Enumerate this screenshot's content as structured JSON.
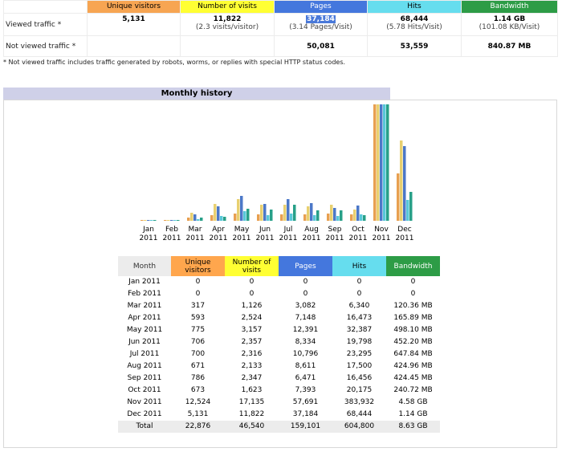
{
  "summary": {
    "headers": {
      "unique_visitors": "Unique visitors",
      "number_of_visits": "Number of visits",
      "pages": "Pages",
      "hits": "Hits",
      "bandwidth": "Bandwidth"
    },
    "viewed": {
      "label": "Viewed traffic *",
      "unique_visitors": "5,131",
      "visits": "11,822",
      "visits_sub": "(2.3 visits/visitor)",
      "pages": "37,184",
      "pages_sub": "(3.14 Pages/Visit)",
      "hits": "68,444",
      "hits_sub": "(5.78 Hits/Visit)",
      "bandwidth": "1.14 GB",
      "bandwidth_sub": "(101.08 KB/Visit)"
    },
    "not_viewed": {
      "label": "Not viewed traffic *",
      "pages": "50,081",
      "hits": "53,559",
      "bandwidth": "840.87 MB"
    },
    "note": "* Not viewed traffic includes traffic generated by robots, worms, or replies with special HTTP status codes."
  },
  "monthly_history": {
    "title": "Monthly history",
    "headers": {
      "month": "Month",
      "unique_visitors": "Unique visitors",
      "number_of_visits": "Number of visits",
      "pages": "Pages",
      "hits": "Hits",
      "bandwidth": "Bandwidth"
    },
    "rows": [
      {
        "month": "Jan 2011",
        "uv": "0",
        "visits": "0",
        "pages": "0",
        "hits": "0",
        "bw": "0"
      },
      {
        "month": "Feb 2011",
        "uv": "0",
        "visits": "0",
        "pages": "0",
        "hits": "0",
        "bw": "0"
      },
      {
        "month": "Mar 2011",
        "uv": "317",
        "visits": "1,126",
        "pages": "3,082",
        "hits": "6,340",
        "bw": "120.36 MB"
      },
      {
        "month": "Apr 2011",
        "uv": "593",
        "visits": "2,524",
        "pages": "7,148",
        "hits": "16,473",
        "bw": "165.89 MB"
      },
      {
        "month": "May 2011",
        "uv": "775",
        "visits": "3,157",
        "pages": "12,391",
        "hits": "32,387",
        "bw": "498.10 MB"
      },
      {
        "month": "Jun 2011",
        "uv": "706",
        "visits": "2,357",
        "pages": "8,334",
        "hits": "19,798",
        "bw": "452.20 MB"
      },
      {
        "month": "Jul 2011",
        "uv": "700",
        "visits": "2,316",
        "pages": "10,796",
        "hits": "23,295",
        "bw": "647.84 MB"
      },
      {
        "month": "Aug 2011",
        "uv": "671",
        "visits": "2,133",
        "pages": "8,611",
        "hits": "17,500",
        "bw": "424.96 MB"
      },
      {
        "month": "Sep 2011",
        "uv": "786",
        "visits": "2,347",
        "pages": "6,471",
        "hits": "16,456",
        "bw": "424.45 MB"
      },
      {
        "month": "Oct 2011",
        "uv": "673",
        "visits": "1,623",
        "pages": "7,393",
        "hits": "20,175",
        "bw": "240.72 MB"
      },
      {
        "month": "Nov 2011",
        "uv": "12,524",
        "visits": "17,135",
        "pages": "57,691",
        "hits": "383,932",
        "bw": "4.58 GB"
      },
      {
        "month": "Dec 2011",
        "uv": "5,131",
        "visits": "11,822",
        "pages": "37,184",
        "hits": "68,444",
        "bw": "1.14 GB"
      }
    ],
    "total": {
      "month": "Total",
      "uv": "22,876",
      "visits": "46,540",
      "pages": "159,101",
      "hits": "604,800",
      "bw": "8.63 GB"
    }
  },
  "chart_data": {
    "type": "bar",
    "categories": [
      "Jan 2011",
      "Feb 2011",
      "Mar 2011",
      "Apr 2011",
      "May 2011",
      "Jun 2011",
      "Jul 2011",
      "Aug 2011",
      "Sep 2011",
      "Oct 2011",
      "Nov 2011",
      "Dec 2011"
    ],
    "series": [
      {
        "name": "Unique visitors",
        "color": "#e8a050",
        "values": [
          0,
          0,
          317,
          593,
          775,
          706,
          700,
          671,
          786,
          673,
          12524,
          5131
        ]
      },
      {
        "name": "Number of visits",
        "color": "#e8d070",
        "values": [
          0,
          0,
          1126,
          2524,
          3157,
          2357,
          2316,
          2133,
          2347,
          1623,
          17135,
          11822
        ]
      },
      {
        "name": "Pages",
        "color": "#4c78c8",
        "values": [
          0,
          0,
          3082,
          7148,
          12391,
          8334,
          10796,
          8611,
          6471,
          7393,
          57691,
          37184
        ]
      },
      {
        "name": "Hits",
        "color": "#58c8d8",
        "values": [
          0,
          0,
          6340,
          16473,
          32387,
          19798,
          23295,
          17500,
          16456,
          20175,
          383932,
          68444
        ]
      },
      {
        "name": "Bandwidth",
        "color": "#28a088",
        "values": [
          0,
          0,
          120.36,
          165.89,
          498.1,
          452.2,
          647.84,
          424.96,
          424.45,
          240.72,
          4689.92,
          1167.36
        ]
      }
    ],
    "month_labels": [
      "Jan",
      "Feb",
      "Mar",
      "Apr",
      "May",
      "Jun",
      "Jul",
      "Aug",
      "Sep",
      "Oct",
      "Nov",
      "Dec"
    ],
    "year_label": "2011"
  }
}
